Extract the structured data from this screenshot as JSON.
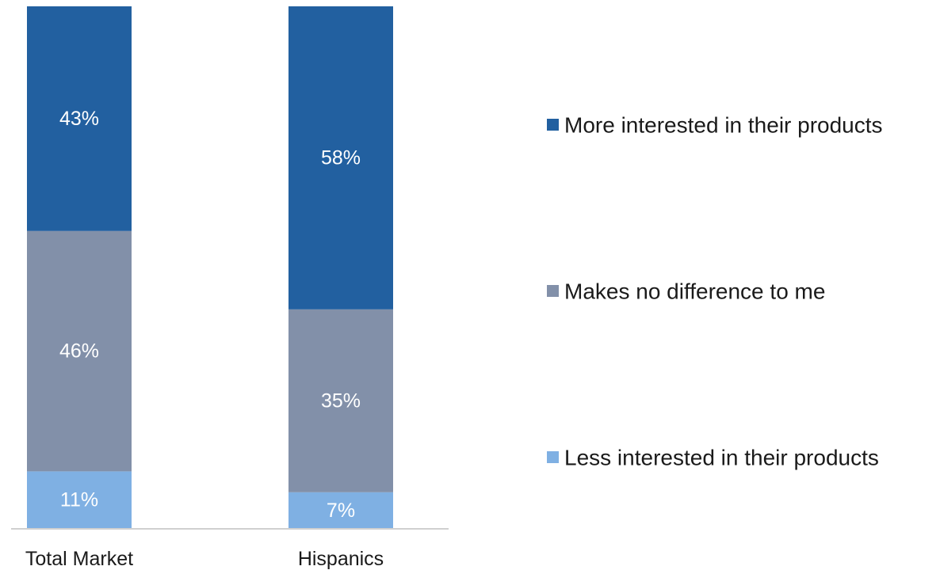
{
  "chart_data": {
    "type": "bar",
    "stacked": true,
    "percent_stacked": true,
    "categories": [
      "Total Market",
      "Hispanics"
    ],
    "series": [
      {
        "name": "Less interested in their products",
        "values": [
          11,
          7
        ],
        "labels": [
          "11%",
          "7%"
        ],
        "color": "#7FB0E3"
      },
      {
        "name": "Makes no difference to me",
        "values": [
          46,
          35
        ],
        "labels": [
          "46%",
          "35%"
        ],
        "color": "#8290A9"
      },
      {
        "name": "More interested in their products",
        "values": [
          43,
          58
        ],
        "labels": [
          "43%",
          "58%"
        ],
        "color": "#2260A0"
      }
    ],
    "ylim": [
      0,
      100
    ],
    "legend_position": "right",
    "legend_order": [
      "More interested in their products",
      "Makes no difference to me",
      "Less interested in their products"
    ],
    "grid": false,
    "axis_line_color": "#d0d0d0"
  }
}
